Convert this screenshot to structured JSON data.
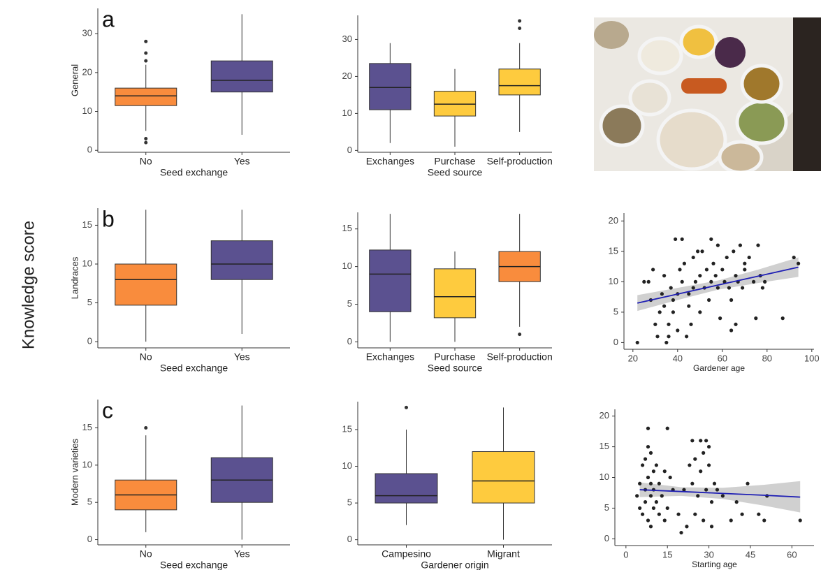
{
  "figure_label": "Knowledge score",
  "chart_data": [
    {
      "type": "box",
      "panel": "a",
      "ylabel": "General",
      "xlabel": "Seed exchange",
      "categories": [
        "No",
        "Yes"
      ],
      "colors": [
        "#f98c3d",
        "#5b5190"
      ],
      "whislo": [
        5,
        4
      ],
      "q1": [
        11.5,
        15
      ],
      "median": [
        14,
        18
      ],
      "q3": [
        16,
        23
      ],
      "whishi": [
        22,
        35
      ],
      "fliers": [
        [
          28,
          25,
          23,
          3,
          2
        ],
        []
      ],
      "ylim": [
        -0.5,
        36.5
      ],
      "yticks": [
        0,
        10,
        20,
        30
      ]
    },
    {
      "type": "box",
      "xlabel": "Seed source",
      "categories": [
        "Exchanges",
        "Purchase",
        "Self-production"
      ],
      "colors": [
        "#5b5190",
        "#fecb3e",
        "#fecb3e"
      ],
      "whislo": [
        2,
        1,
        5
      ],
      "q1": [
        11,
        9.3,
        15
      ],
      "median": [
        17,
        12.5,
        17.5
      ],
      "q3": [
        23.5,
        16,
        22
      ],
      "whishi": [
        29,
        22,
        29
      ],
      "fliers": [
        [],
        [],
        [
          33,
          35
        ]
      ],
      "ylim": [
        -0.5,
        36.5
      ],
      "yticks": [
        0,
        10,
        20,
        30
      ]
    },
    {
      "type": "box",
      "panel": "b",
      "ylabel": "Landraces",
      "xlabel": "Seed exchange",
      "categories": [
        "No",
        "Yes"
      ],
      "colors": [
        "#f98c3d",
        "#5b5190"
      ],
      "whislo": [
        0,
        1
      ],
      "q1": [
        4.7,
        8
      ],
      "median": [
        8,
        10
      ],
      "q3": [
        10,
        13
      ],
      "whishi": [
        17,
        17
      ],
      "fliers": [
        [],
        []
      ],
      "ylim": [
        -0.8,
        17.2
      ],
      "yticks": [
        0,
        5,
        10,
        15
      ]
    },
    {
      "type": "box",
      "xlabel": "Seed source",
      "categories": [
        "Exchanges",
        "Purchase",
        "Self-production"
      ],
      "colors": [
        "#5b5190",
        "#fecb3e",
        "#f98c3d"
      ],
      "whislo": [
        0,
        0,
        2
      ],
      "q1": [
        4,
        3.2,
        8
      ],
      "median": [
        9,
        6,
        10
      ],
      "q3": [
        12.2,
        9.7,
        12
      ],
      "whishi": [
        17,
        12,
        17
      ],
      "fliers": [
        [],
        [],
        [
          1
        ]
      ],
      "ylim": [
        -0.8,
        17.2
      ],
      "yticks": [
        0,
        5,
        10,
        15
      ]
    },
    {
      "type": "scatter",
      "xlabel": "Gardener age",
      "color": "#222222",
      "x": [
        22,
        25,
        27,
        28,
        29,
        30,
        31,
        32,
        33,
        34,
        34,
        35,
        36,
        36,
        37,
        38,
        38,
        39,
        40,
        40,
        41,
        42,
        42,
        43,
        44,
        45,
        45,
        46,
        47,
        47,
        48,
        49,
        50,
        50,
        51,
        52,
        53,
        54,
        55,
        55,
        56,
        57,
        58,
        58,
        59,
        60,
        61,
        62,
        63,
        64,
        64,
        65,
        66,
        66,
        67,
        68,
        69,
        70,
        70,
        72,
        74,
        75,
        76,
        77,
        78,
        79,
        87,
        92,
        94
      ],
      "y": [
        0,
        10,
        10,
        7,
        12,
        3,
        1,
        5,
        8,
        11,
        6,
        0,
        3,
        1,
        9,
        5,
        7,
        17,
        2,
        8,
        12,
        17,
        10,
        13,
        1,
        6,
        8,
        3,
        9,
        14,
        10,
        15,
        11,
        5,
        15,
        9,
        12,
        7,
        17,
        10,
        13,
        11,
        9,
        16,
        4,
        12,
        10,
        14,
        9,
        2,
        7,
        15,
        11,
        3,
        10,
        16,
        9,
        12,
        13,
        14,
        10,
        4,
        16,
        11,
        9,
        10,
        4,
        14,
        13
      ],
      "fit": {
        "color": "#1f1fb4",
        "band_color": "#c8c8c8",
        "x": [
          22,
          40,
          58,
          76,
          94
        ],
        "y": [
          6.5,
          7.975,
          9.45,
          10.925,
          12.4
        ],
        "lower": [
          5.2,
          7.0,
          8.7,
          9.8,
          10.8
        ],
        "upper": [
          7.8,
          9.0,
          10.2,
          12.0,
          14.0
        ]
      },
      "xlim": [
        16,
        101
      ],
      "xticks": [
        20,
        40,
        60,
        80,
        100
      ],
      "ylim": [
        -1.1,
        21.3
      ],
      "yticks": [
        0,
        5,
        10,
        15,
        20
      ]
    },
    {
      "type": "box",
      "panel": "c",
      "ylabel": "Modern varieties",
      "xlabel": "Seed exchange",
      "categories": [
        "No",
        "Yes"
      ],
      "colors": [
        "#f98c3d",
        "#5b5190"
      ],
      "whislo": [
        1,
        0
      ],
      "q1": [
        4,
        5
      ],
      "median": [
        6,
        8
      ],
      "q3": [
        8,
        11
      ],
      "whishi": [
        14,
        18
      ],
      "fliers": [
        [
          15
        ],
        []
      ],
      "ylim": [
        -0.7,
        18.8
      ],
      "yticks": [
        0,
        5,
        10,
        15
      ]
    },
    {
      "type": "box",
      "xlabel": "Gardener origin",
      "categories": [
        "Campesino",
        "Migrant"
      ],
      "colors": [
        "#5b5190",
        "#fecb3e"
      ],
      "whislo": [
        2,
        0
      ],
      "q1": [
        5,
        5
      ],
      "median": [
        6,
        8
      ],
      "q3": [
        9,
        12
      ],
      "whishi": [
        15,
        18
      ],
      "fliers": [
        [
          18
        ],
        []
      ],
      "ylim": [
        -0.7,
        18.8
      ],
      "yticks": [
        0,
        5,
        10,
        15
      ]
    },
    {
      "type": "scatter",
      "xlabel": "Starting age",
      "color": "#222222",
      "x": [
        4,
        5,
        5,
        6,
        6,
        7,
        7,
        7,
        8,
        8,
        8,
        8,
        9,
        9,
        9,
        9,
        10,
        10,
        10,
        11,
        11,
        12,
        12,
        13,
        14,
        14,
        15,
        15,
        16,
        17,
        19,
        20,
        21,
        22,
        23,
        24,
        24,
        25,
        25,
        26,
        27,
        27,
        28,
        28,
        29,
        29,
        30,
        30,
        31,
        31,
        32,
        33,
        35,
        38,
        40,
        42,
        44,
        48,
        50,
        51,
        63
      ],
      "y": [
        7,
        9,
        5,
        12,
        4,
        13,
        8,
        6,
        15,
        10,
        3,
        18,
        9,
        14,
        7,
        2,
        11,
        5,
        8,
        6,
        12,
        4,
        9,
        7,
        3,
        11,
        18,
        5,
        10,
        8,
        4,
        1,
        8,
        2,
        12,
        16,
        9,
        4,
        13,
        7,
        16,
        11,
        3,
        14,
        16,
        8,
        15,
        12,
        6,
        2,
        9,
        8,
        7,
        3,
        6,
        4,
        9,
        4,
        3,
        7,
        3
      ],
      "fit": {
        "color": "#1f1fb4",
        "band_color": "#c8c8c8",
        "x": [
          5,
          20,
          35,
          50,
          63
        ],
        "y": [
          8,
          7.7,
          7.4,
          7.1,
          6.8
        ],
        "lower": [
          6.8,
          7.0,
          6.5,
          5.4,
          4.3
        ],
        "upper": [
          9.2,
          8.4,
          8.3,
          8.8,
          9.4
        ]
      },
      "xlim": [
        -4,
        68
      ],
      "xticks": [
        0,
        15,
        30,
        45,
        60
      ],
      "ylim": [
        -1.1,
        21.1
      ],
      "yticks": [
        0,
        5,
        10,
        15,
        20
      ]
    }
  ]
}
